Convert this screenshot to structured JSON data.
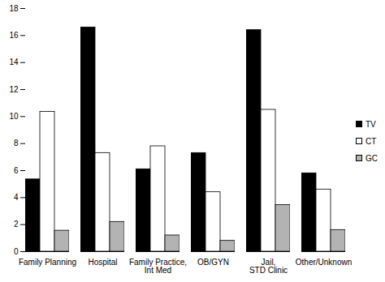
{
  "chart_data": {
    "type": "bar",
    "categories": [
      "Family Planning",
      "Hospital",
      "Family Practice, Int Med",
      "OB/GYN",
      "Jail, STD Clinic",
      "Other/Unknown"
    ],
    "series": [
      {
        "name": "TV",
        "color": "#000000",
        "values": [
          5.35,
          16.6,
          6.1,
          7.3,
          16.4,
          5.8
        ]
      },
      {
        "name": "CT",
        "color": "#ffffff",
        "values": [
          10.35,
          7.3,
          7.8,
          4.4,
          10.5,
          4.6
        ]
      },
      {
        "name": "GC",
        "color": "#b3b3b3",
        "values": [
          1.55,
          2.2,
          1.2,
          0.8,
          3.45,
          1.6
        ]
      }
    ],
    "ylim": [
      0,
      18
    ],
    "yticks": [
      0,
      2,
      4,
      6,
      8,
      10,
      12,
      14,
      16,
      18
    ],
    "legend": "right",
    "grid": false
  }
}
